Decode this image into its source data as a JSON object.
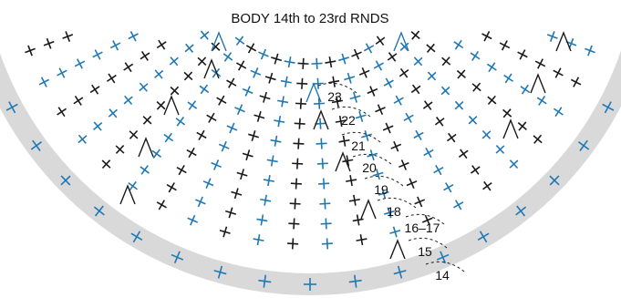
{
  "title": "BODY 14th to 23rd RNDS",
  "colors": {
    "black_stitch": "#1a1a1a",
    "blue_stitch": "#1f78b4",
    "band": "#d9d9d9",
    "dashed": "#1a1a1a"
  },
  "round_labels": [
    "23",
    "22",
    "21",
    "20",
    "19",
    "18",
    "16–17",
    "15",
    "14"
  ],
  "symbols": {
    "single_crochet": "cross-stitch-icon",
    "increase": "v-increase-icon",
    "decrease": "triangle-decrease-icon"
  }
}
